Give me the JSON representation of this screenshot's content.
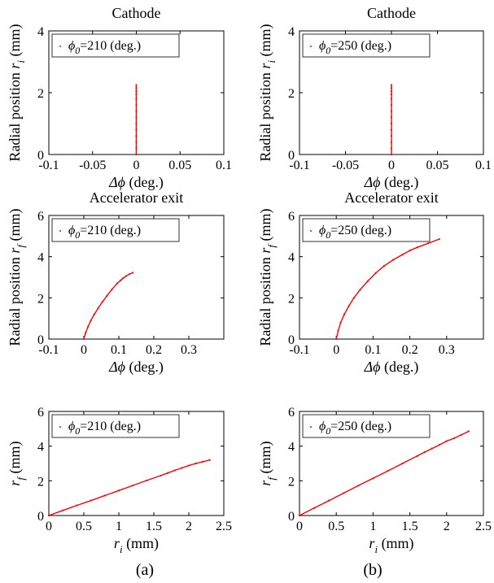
{
  "figure": {
    "captions": [
      "(a)",
      "(b)"
    ]
  },
  "chart_data": [
    {
      "id": "a1",
      "type": "scatter",
      "title": "Cathode",
      "ylabel_prefix": "Radial position ",
      "ylabel_var": "r",
      "ylabel_sub": "i",
      "ylabel_suffix": " (mm)",
      "xlabel_var": "Δϕ",
      "xlabel_suffix": " (deg.)",
      "xlim": [
        -0.1,
        0.1
      ],
      "ylim": [
        0,
        4
      ],
      "xticks": [
        "-0.1",
        "-0.05",
        "0",
        "0.05",
        "0.1"
      ],
      "xtick_values": [
        -0.1,
        -0.05,
        0,
        0.05,
        0.1
      ],
      "yticks": [
        "0",
        "2",
        "4"
      ],
      "ytick_values": [
        0,
        2,
        4
      ],
      "grid": false,
      "legend_position": "top-left",
      "legend_var": "ϕ",
      "legend_sub": "0",
      "legend_value": "=210 (deg.)",
      "series_color": "#ff0000",
      "points": [
        [
          0,
          0.0
        ],
        [
          0,
          0.2
        ],
        [
          0,
          0.4
        ],
        [
          0,
          0.6
        ],
        [
          0,
          0.8
        ],
        [
          0,
          1.0
        ],
        [
          0,
          1.2
        ],
        [
          0,
          1.4
        ],
        [
          0,
          1.6
        ],
        [
          0,
          1.8
        ],
        [
          0,
          1.95
        ],
        [
          0,
          2.05
        ],
        [
          0,
          2.15
        ],
        [
          0,
          2.25
        ]
      ]
    },
    {
      "id": "b1",
      "type": "scatter",
      "title": "Cathode",
      "ylabel_prefix": "Radial position ",
      "ylabel_var": "r",
      "ylabel_sub": "i",
      "ylabel_suffix": " (mm)",
      "xlabel_var": "Δϕ",
      "xlabel_suffix": " (deg.)",
      "xlim": [
        -0.1,
        0.1
      ],
      "ylim": [
        0,
        4
      ],
      "xticks": [
        "-0.1",
        "-0.05",
        "0",
        "0.05",
        "0.1"
      ],
      "xtick_values": [
        -0.1,
        -0.05,
        0,
        0.05,
        0.1
      ],
      "yticks": [
        "0",
        "2",
        "4"
      ],
      "ytick_values": [
        0,
        2,
        4
      ],
      "grid": false,
      "legend_position": "top-left",
      "legend_var": "ϕ",
      "legend_sub": "0",
      "legend_value": "=250 (deg.)",
      "series_color": "#ff0000",
      "points": [
        [
          0,
          0.0
        ],
        [
          0,
          0.2
        ],
        [
          0,
          0.4
        ],
        [
          0,
          0.6
        ],
        [
          0,
          0.8
        ],
        [
          0,
          1.0
        ],
        [
          0,
          1.2
        ],
        [
          0,
          1.4
        ],
        [
          0,
          1.6
        ],
        [
          0,
          1.8
        ],
        [
          0,
          1.95
        ],
        [
          0,
          2.05
        ],
        [
          0,
          2.15
        ],
        [
          0,
          2.25
        ]
      ]
    },
    {
      "id": "a2",
      "type": "scatter",
      "title": "Accelerator exit",
      "ylabel_prefix": "Radial position ",
      "ylabel_var": "r",
      "ylabel_sub": "f",
      "ylabel_suffix": " (mm)",
      "xlabel_var": "Δϕ",
      "xlabel_suffix": " (deg.)",
      "xlim": [
        -0.1,
        0.4
      ],
      "ylim": [
        0,
        6
      ],
      "xticks": [
        "-0.1",
        "0",
        "0.1",
        "0.2",
        "0.3"
      ],
      "xtick_values": [
        -0.1,
        0,
        0.1,
        0.2,
        0.3
      ],
      "yticks": [
        "0",
        "2",
        "4",
        "6"
      ],
      "ytick_values": [
        0,
        2,
        4,
        6
      ],
      "grid": false,
      "legend_position": "top-left",
      "legend_var": "ϕ",
      "legend_sub": "0",
      "legend_value": "=210 (deg.)",
      "series_color": "#ff0000",
      "points": [
        [
          0,
          0
        ],
        [
          0.005,
          0.3
        ],
        [
          0.012,
          0.6
        ],
        [
          0.02,
          0.9
        ],
        [
          0.03,
          1.2
        ],
        [
          0.041,
          1.5
        ],
        [
          0.053,
          1.8
        ],
        [
          0.066,
          2.1
        ],
        [
          0.08,
          2.4
        ],
        [
          0.095,
          2.7
        ],
        [
          0.105,
          2.85
        ],
        [
          0.112,
          2.95
        ],
        [
          0.12,
          3.05
        ],
        [
          0.13,
          3.15
        ],
        [
          0.14,
          3.22
        ]
      ]
    },
    {
      "id": "b2",
      "type": "scatter",
      "title": "Accelerator exit",
      "ylabel_prefix": "Radial position ",
      "ylabel_var": "r",
      "ylabel_sub": "f",
      "ylabel_suffix": " (mm)",
      "xlabel_var": "Δϕ",
      "xlabel_suffix": " (deg.)",
      "xlim": [
        -0.1,
        0.4
      ],
      "ylim": [
        0,
        6
      ],
      "xticks": [
        "-0.1",
        "0",
        "0.1",
        "0.2",
        "0.3"
      ],
      "xtick_values": [
        -0.1,
        0,
        0.1,
        0.2,
        0.3
      ],
      "yticks": [
        "0",
        "2",
        "4",
        "6"
      ],
      "ytick_values": [
        0,
        2,
        4,
        6
      ],
      "grid": false,
      "legend_position": "top-left",
      "legend_var": "ϕ",
      "legend_sub": "0",
      "legend_value": "=250 (deg.)",
      "series_color": "#ff0000",
      "points": [
        [
          0,
          0
        ],
        [
          0.005,
          0.4
        ],
        [
          0.012,
          0.8
        ],
        [
          0.022,
          1.2
        ],
        [
          0.034,
          1.6
        ],
        [
          0.048,
          2.0
        ],
        [
          0.065,
          2.4
        ],
        [
          0.085,
          2.8
        ],
        [
          0.107,
          3.2
        ],
        [
          0.13,
          3.55
        ],
        [
          0.155,
          3.85
        ],
        [
          0.18,
          4.1
        ],
        [
          0.2,
          4.3
        ],
        [
          0.22,
          4.45
        ],
        [
          0.25,
          4.65
        ],
        [
          0.28,
          4.85
        ]
      ]
    },
    {
      "id": "a3",
      "type": "scatter",
      "title": "",
      "ylabel_prefix": "",
      "ylabel_var": "r",
      "ylabel_sub": "f",
      "ylabel_suffix": " (mm)",
      "xlabel_var": "r",
      "xlabel_sub": "i",
      "xlabel_suffix": " (mm)",
      "xlim": [
        0,
        2.5
      ],
      "ylim": [
        0,
        6
      ],
      "xticks": [
        "0",
        "0.5",
        "1",
        "1.5",
        "2",
        "2.5"
      ],
      "xtick_values": [
        0,
        0.5,
        1,
        1.5,
        2,
        2.5
      ],
      "yticks": [
        "0",
        "2",
        "4",
        "6"
      ],
      "ytick_values": [
        0,
        2,
        4,
        6
      ],
      "grid": false,
      "legend_position": "top-left",
      "legend_var": "ϕ",
      "legend_sub": "0",
      "legend_value": "=210 (deg.)",
      "series_color": "#ff0000",
      "points": [
        [
          0,
          0
        ],
        [
          0.2,
          0.29
        ],
        [
          0.4,
          0.58
        ],
        [
          0.6,
          0.86
        ],
        [
          0.8,
          1.15
        ],
        [
          1.0,
          1.44
        ],
        [
          1.2,
          1.73
        ],
        [
          1.4,
          2.02
        ],
        [
          1.6,
          2.3
        ],
        [
          1.7,
          2.45
        ],
        [
          1.8,
          2.6
        ],
        [
          1.9,
          2.74
        ],
        [
          2.0,
          2.88
        ],
        [
          2.1,
          3.0
        ],
        [
          2.2,
          3.1
        ],
        [
          2.3,
          3.2
        ]
      ]
    },
    {
      "id": "b3",
      "type": "scatter",
      "title": "",
      "ylabel_prefix": "",
      "ylabel_var": "r",
      "ylabel_sub": "f",
      "ylabel_suffix": " (mm)",
      "xlabel_var": "r",
      "xlabel_sub": "i",
      "xlabel_suffix": " (mm)",
      "xlim": [
        0,
        2.5
      ],
      "ylim": [
        0,
        6
      ],
      "xticks": [
        "0",
        "0.5",
        "1",
        "1.5",
        "2",
        "2.5"
      ],
      "xtick_values": [
        0,
        0.5,
        1,
        1.5,
        2,
        2.5
      ],
      "yticks": [
        "0",
        "2",
        "4",
        "6"
      ],
      "ytick_values": [
        0,
        2,
        4,
        6
      ],
      "grid": false,
      "legend_position": "top-left",
      "legend_var": "ϕ",
      "legend_sub": "0",
      "legend_value": "=250 (deg.)",
      "series_color": "#ff0000",
      "points": [
        [
          0,
          0
        ],
        [
          0.2,
          0.43
        ],
        [
          0.4,
          0.86
        ],
        [
          0.6,
          1.29
        ],
        [
          0.8,
          1.72
        ],
        [
          1.0,
          2.14
        ],
        [
          1.2,
          2.57
        ],
        [
          1.4,
          3.0
        ],
        [
          1.6,
          3.43
        ],
        [
          1.7,
          3.65
        ],
        [
          1.8,
          3.86
        ],
        [
          1.9,
          4.07
        ],
        [
          2.0,
          4.29
        ],
        [
          2.1,
          4.45
        ],
        [
          2.2,
          4.65
        ],
        [
          2.3,
          4.85
        ]
      ]
    }
  ]
}
